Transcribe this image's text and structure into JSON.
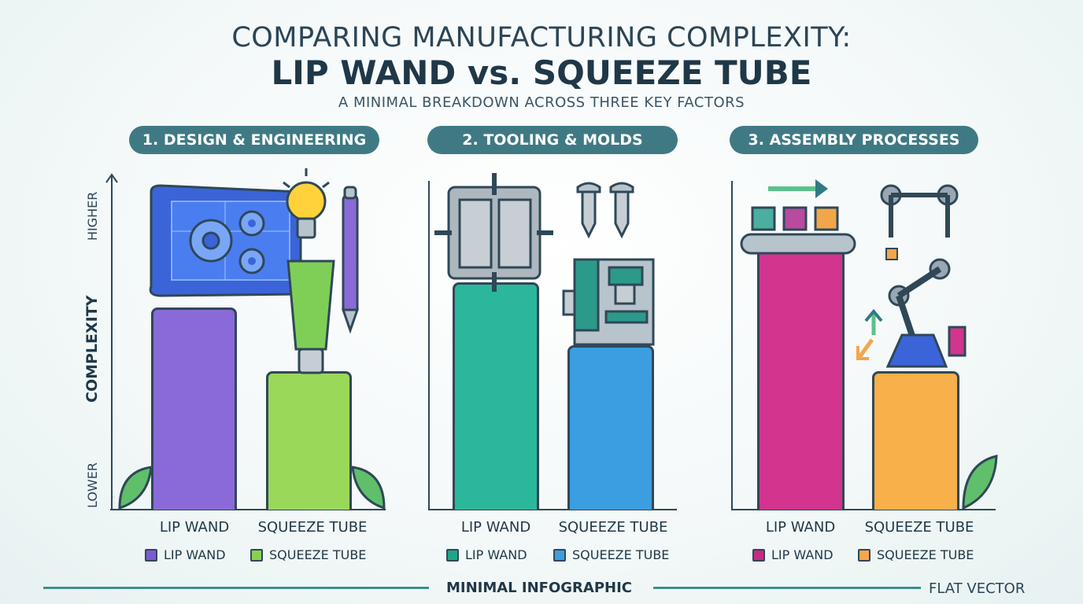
{
  "header": {
    "title_line1": "COMPARING MANUFACTURING COMPLEXITY:",
    "title_line2": "LIP WAND vs. SQUEEZE TUBE",
    "subtitle": "A MINIMAL BREAKDOWN ACROSS THREE KEY FACTORS"
  },
  "y_axis": {
    "high": "HIGHER",
    "label": "COMPLEXITY",
    "low": "LOWER"
  },
  "footer": {
    "center": "MINIMAL INFOGRAPHIC",
    "right": "FLAT VECTOR"
  },
  "chart_data": [
    {
      "type": "bar",
      "title": "1. DESIGN & ENGINEERING",
      "categories": [
        "LIP WAND",
        "SQUEEZE TUBE"
      ],
      "values": [
        8,
        5.5
      ],
      "ylim": [
        0,
        12
      ],
      "ylabel": "COMPLEXITY",
      "legend": [
        "LIP WAND",
        "SQUEEZE TUBE"
      ],
      "legend_position": "bottom",
      "colors": [
        "#8a6ad8",
        "#9ad85a"
      ],
      "icons": [
        "blueprint-gears-icon",
        "lightbulb-icon",
        "pen-icon",
        "tube-icon"
      ]
    },
    {
      "type": "bar",
      "title": "2. TOOLING & MOLDS",
      "categories": [
        "LIP WAND",
        "SQUEEZE TUBE"
      ],
      "values": [
        9,
        6.5
      ],
      "ylim": [
        0,
        12
      ],
      "legend": [
        "LIP WAND",
        "SQUEEZE TUBE"
      ],
      "legend_position": "bottom",
      "colors": [
        "#2bb79c",
        "#3a9ee0"
      ],
      "icons": [
        "mold-icon",
        "screw-icon",
        "cnc-machine-icon"
      ]
    },
    {
      "type": "bar",
      "title": "3. ASSEMBLY PROCESSES",
      "categories": [
        "LIP WAND",
        "SQUEEZE TUBE"
      ],
      "values": [
        10.5,
        5.5
      ],
      "ylim": [
        0,
        12
      ],
      "legend": [
        "LIP WAND",
        "SQUEEZE TUBE"
      ],
      "legend_position": "bottom",
      "colors": [
        "#d2348e",
        "#f7b04a"
      ],
      "icons": [
        "conveyor-icon",
        "robot-arm-icon",
        "arrows-icon"
      ]
    }
  ]
}
